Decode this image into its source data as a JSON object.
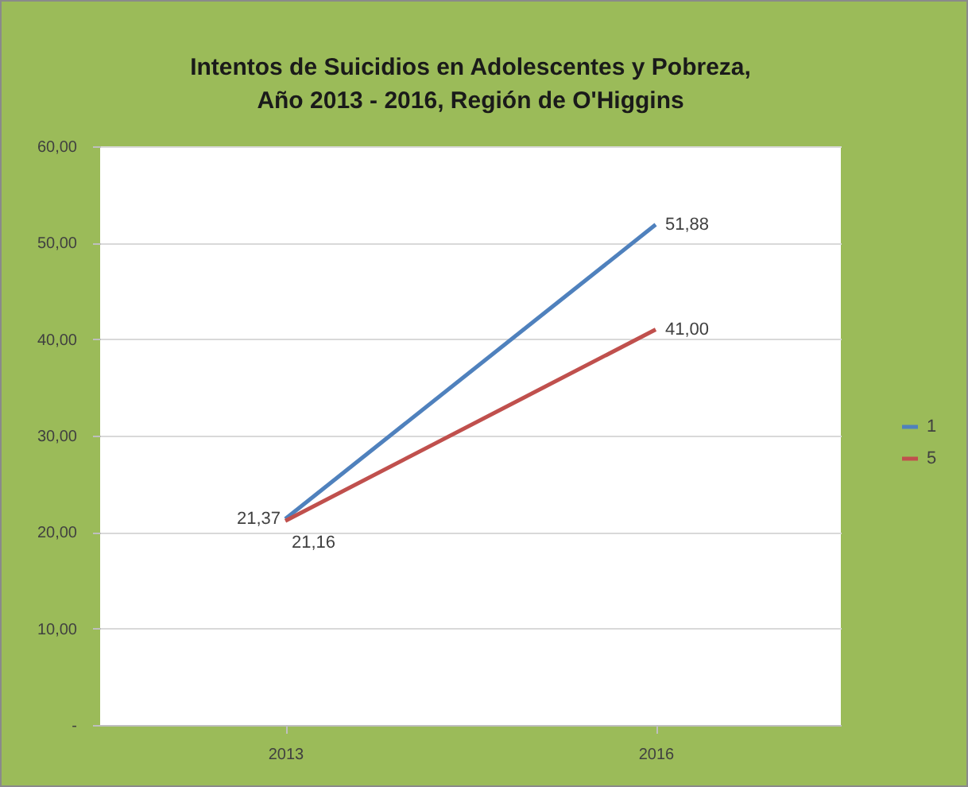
{
  "chart_data": {
    "type": "line",
    "title": "Intentos de Suicidios en Adolescentes y Pobreza,\nAño 2013 - 2016, Región de O'Higgins",
    "categories": [
      "2013",
      "2016"
    ],
    "series": [
      {
        "name": "1",
        "color": "#4f81bd",
        "values": [
          21.37,
          51.88
        ],
        "value_labels": [
          "21,37",
          "51,88"
        ]
      },
      {
        "name": "5",
        "color": "#c0504d",
        "values": [
          21.16,
          41.0
        ],
        "value_labels": [
          "21,16",
          "41,00"
        ]
      }
    ],
    "ylim": [
      0,
      60
    ],
    "yticks": [
      {
        "value": 0,
        "label": "-"
      },
      {
        "value": 10,
        "label": "10,00"
      },
      {
        "value": 20,
        "label": "20,00"
      },
      {
        "value": 30,
        "label": "30,00"
      },
      {
        "value": 40,
        "label": "40,00"
      },
      {
        "value": 50,
        "label": "50,00"
      },
      {
        "value": 60,
        "label": "60,00"
      }
    ],
    "grid": "y",
    "legend": "right",
    "marker": "none",
    "line_style": "solid"
  }
}
